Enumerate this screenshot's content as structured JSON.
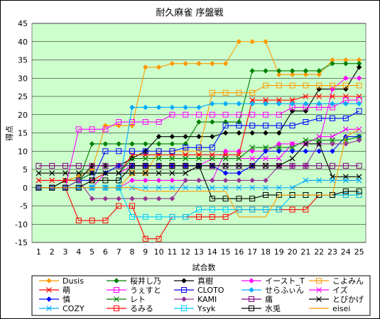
{
  "chart_data": {
    "type": "line",
    "title": "耐久麻雀 序盤戦",
    "xlabel": "試合数",
    "ylabel": "得点",
    "ylim": [
      -15,
      45
    ],
    "yticks": [
      -15,
      -10,
      -5,
      0,
      5,
      10,
      15,
      20,
      25,
      30,
      35,
      40,
      45
    ],
    "x": [
      1,
      2,
      3,
      4,
      5,
      6,
      7,
      8,
      9,
      10,
      11,
      12,
      13,
      14,
      15,
      16,
      17,
      18,
      19,
      20,
      21,
      22,
      23,
      24,
      25
    ],
    "grid": true,
    "legend_position": "bottom",
    "background": "#ccffcc",
    "series": [
      {
        "name": "Dusis",
        "color": "#ff9900",
        "marker": "diamond",
        "values": [
          0,
          0,
          2,
          3,
          5,
          17,
          17,
          17,
          33,
          33,
          34,
          34,
          34,
          34,
          34,
          40,
          40,
          40,
          31,
          31,
          31,
          31,
          35,
          35,
          35
        ]
      },
      {
        "name": "桜井し乃",
        "color": "#008000",
        "marker": "diamond",
        "values": [
          0,
          0,
          2,
          2,
          12,
          12,
          12,
          12,
          12,
          12,
          12,
          12,
          18,
          18,
          18,
          18,
          32,
          32,
          32,
          32,
          32,
          32,
          34,
          34,
          34
        ]
      },
      {
        "name": "真樹",
        "color": "#000000",
        "marker": "diamond",
        "values": [
          0,
          0,
          2,
          2,
          6,
          6,
          6,
          8,
          10,
          14,
          14,
          14,
          14,
          14,
          15,
          15,
          15,
          15,
          15,
          21,
          21,
          27,
          27,
          27,
          33
        ]
      },
      {
        "name": "イースト_T",
        "color": "#ff00ff",
        "marker": "diamond",
        "values": [
          0,
          0,
          0,
          0,
          0,
          0,
          0,
          2,
          2,
          2,
          2,
          2,
          2,
          2,
          10,
          10,
          10,
          10,
          12,
          12,
          12,
          12,
          27,
          30,
          30
        ]
      },
      {
        "name": "こよみん",
        "color": "#ff9900",
        "marker": "square",
        "values": [
          0,
          0,
          0,
          0,
          0,
          0,
          0,
          4,
          4,
          10,
          10,
          10,
          10,
          26,
          26,
          26,
          26,
          28,
          28,
          28,
          28,
          28,
          28,
          28,
          28
        ]
      },
      {
        "name": "萌",
        "color": "#ff0000",
        "marker": "x",
        "values": [
          2,
          2,
          2,
          2,
          2,
          4,
          4,
          9,
          9,
          9,
          9,
          9,
          9,
          9,
          9,
          9,
          24,
          24,
          24,
          24,
          25,
          25,
          25,
          25,
          25
        ]
      },
      {
        "name": "うぇすと",
        "color": "#ff00ff",
        "marker": "square",
        "values": [
          0,
          0,
          0,
          16,
          16,
          16,
          18,
          18,
          18,
          18,
          20,
          20,
          20,
          20,
          20,
          20,
          20,
          20,
          20,
          22,
          22,
          22,
          22,
          24,
          24
        ]
      },
      {
        "name": "CLOTO",
        "color": "#0000ff",
        "marker": "square",
        "values": [
          0,
          0,
          0,
          2,
          2,
          10,
          10,
          10,
          10,
          10,
          10,
          11,
          11,
          11,
          17,
          17,
          17,
          17,
          17,
          17,
          18,
          19,
          19,
          19,
          21
        ]
      },
      {
        "name": "せらふぃん",
        "color": "#00aaff",
        "marker": "diamond",
        "values": [
          0,
          0,
          0,
          0,
          0,
          0,
          0,
          22,
          22,
          22,
          22,
          22,
          22,
          23,
          23,
          23,
          23,
          23,
          23,
          23,
          23,
          23,
          23,
          23,
          23
        ]
      },
      {
        "name": "イズ",
        "color": "#ff00ff",
        "marker": "x",
        "values": [
          0,
          0,
          0,
          0,
          0,
          4,
          4,
          6,
          6,
          6,
          6,
          6,
          6,
          8,
          8,
          8,
          8,
          8,
          8,
          12,
          12,
          14,
          14,
          16,
          16
        ]
      },
      {
        "name": "慎",
        "color": "#0000ff",
        "marker": "diamond",
        "values": [
          0,
          0,
          0,
          2,
          4,
          4,
          6,
          6,
          6,
          6,
          6,
          6,
          6,
          6,
          4,
          4,
          6,
          10,
          10,
          10,
          10,
          10,
          10,
          14,
          14
        ]
      },
      {
        "name": "レト",
        "color": "#008000",
        "marker": "x",
        "values": [
          0,
          0,
          0,
          2,
          4,
          4,
          4,
          8,
          8,
          8,
          8,
          8,
          8,
          8,
          8,
          8,
          11,
          11,
          11,
          11,
          13,
          13,
          13,
          13,
          14
        ]
      },
      {
        "name": "KAMI",
        "color": "#993399",
        "marker": "diamond",
        "values": [
          0,
          0,
          0,
          2,
          -3,
          -3,
          -3,
          -3,
          -3,
          -3,
          -3,
          2,
          2,
          2,
          2,
          2,
          2,
          2,
          6,
          6,
          6,
          12,
          12,
          12,
          13
        ]
      },
      {
        "name": "痛",
        "color": "#800080",
        "marker": "square",
        "values": [
          6,
          6,
          6,
          6,
          6,
          6,
          6,
          6,
          6,
          6,
          6,
          6,
          6,
          6,
          6,
          6,
          6,
          6,
          6,
          6,
          6,
          6,
          6,
          6,
          6
        ]
      },
      {
        "name": "とびかげ",
        "color": "#000000",
        "marker": "x",
        "values": [
          4,
          4,
          4,
          4,
          4,
          4,
          4,
          4,
          4,
          4,
          4,
          4,
          6,
          6,
          6,
          6,
          6,
          6,
          6,
          8,
          12,
          12,
          3,
          3,
          3
        ]
      },
      {
        "name": "COZY",
        "color": "#00aaff",
        "marker": "x",
        "values": [
          0,
          0,
          0,
          0,
          0,
          0,
          0,
          0,
          0,
          0,
          0,
          0,
          0,
          0,
          0,
          0,
          0,
          0,
          0,
          0,
          2,
          2,
          2,
          2,
          2
        ]
      },
      {
        "name": "るみる",
        "color": "#ff0000",
        "marker": "square",
        "values": [
          0,
          0,
          0,
          -9,
          -9,
          -9,
          -5,
          -5,
          -14,
          -14,
          -8,
          -8,
          -8,
          -8,
          -8,
          -6,
          -6,
          -6,
          -6,
          -6,
          -6,
          -2,
          -2,
          -2,
          -2
        ]
      },
      {
        "name": "Ysyk",
        "color": "#00ccff",
        "marker": "square",
        "values": [
          0,
          0,
          0,
          0,
          0,
          0,
          0,
          -8,
          -8,
          -8,
          -8,
          -8,
          -6,
          -6,
          -6,
          -6,
          -6,
          -6,
          -6,
          -2,
          -2,
          -2,
          -2,
          -2,
          -2
        ]
      },
      {
        "name": "水兎",
        "color": "#000000",
        "marker": "square",
        "values": [
          0,
          0,
          0,
          0,
          2,
          2,
          2,
          6,
          6,
          6,
          6,
          6,
          6,
          -3,
          -3,
          -3,
          -3,
          -2,
          -2,
          -2,
          -2,
          -2,
          -2,
          -1,
          -1
        ]
      },
      {
        "name": "eisei",
        "color": "#ff9900",
        "marker": "none",
        "values": [
          0,
          0,
          0,
          0,
          0,
          0,
          0,
          0,
          -1,
          -1,
          -1,
          -1,
          -1,
          -1,
          -1,
          -8,
          -8,
          -8,
          -2,
          -2,
          -2,
          -2,
          -2,
          14,
          16
        ]
      }
    ]
  }
}
